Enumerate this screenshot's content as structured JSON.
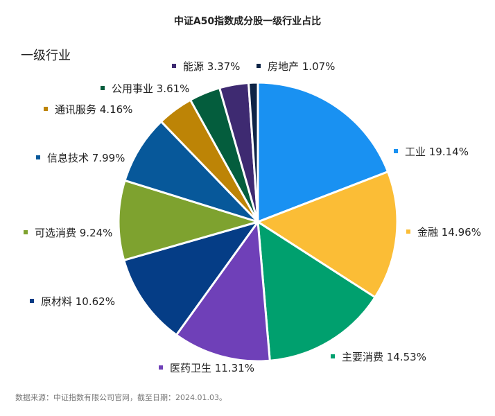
{
  "chart_data": {
    "type": "pie",
    "title": "中证A50指数成分股一级行业占比",
    "subtitle": "一级行业",
    "source": "数据来源：中证指数有限公司官网，截至日期：2024.01.03。",
    "legend": "labels-beside-slices",
    "slices": [
      {
        "name": "工业",
        "value": 19.14,
        "label": "19.14%",
        "color": "#1991F2"
      },
      {
        "name": "金融",
        "value": 14.96,
        "label": "14.96%",
        "color": "#FBBD36"
      },
      {
        "name": "主要消费",
        "value": 14.53,
        "label": "14.53%",
        "color": "#00A06E"
      },
      {
        "name": "医药卫生",
        "value": 11.31,
        "label": "11.31%",
        "color": "#6F40B8"
      },
      {
        "name": "原材料",
        "value": 10.62,
        "label": "10.62%",
        "color": "#053D86"
      },
      {
        "name": "可选消费",
        "value": 9.24,
        "label": "9.24%",
        "color": "#7EA22F"
      },
      {
        "name": "信息技术",
        "value": 7.99,
        "label": "7.99%",
        "color": "#07589A"
      },
      {
        "name": "通讯服务",
        "value": 4.16,
        "label": "4.16%",
        "color": "#BD8406"
      },
      {
        "name": "公用事业",
        "value": 3.61,
        "label": "3.61%",
        "color": "#045D3D"
      },
      {
        "name": "能源",
        "value": 3.37,
        "label": "3.37%",
        "color": "#3E2A71"
      },
      {
        "name": "房地产",
        "value": 1.07,
        "label": "1.07%",
        "color": "#0E2446"
      }
    ]
  }
}
